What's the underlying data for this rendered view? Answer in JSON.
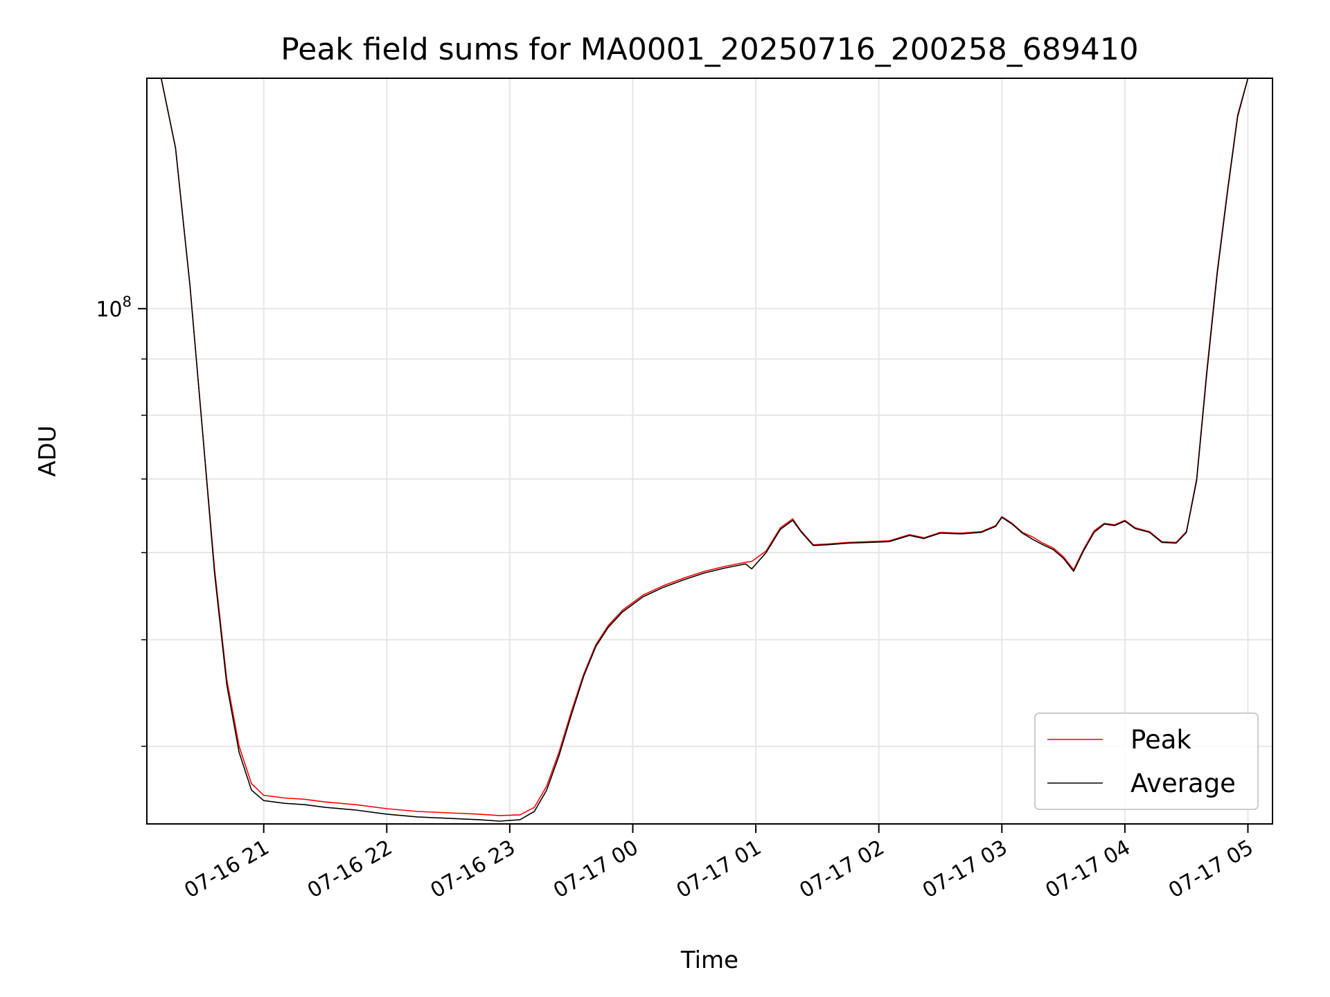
{
  "chart_data": {
    "type": "line",
    "title": "Peak field sums for MA0001_20250716_200258_689410",
    "xlabel": "Time",
    "ylabel": "ADU",
    "yscale": "log",
    "xlim": [
      "2025-07-16 20:03",
      "2025-07-17 05:12"
    ],
    "ylim": [
      34000000,
      162000000
    ],
    "grid": true,
    "legend_position": "lower-right",
    "x_ticks": [
      {
        "time": "2025-07-16 21:00",
        "label": "07-16 21"
      },
      {
        "time": "2025-07-16 22:00",
        "label": "07-16 22"
      },
      {
        "time": "2025-07-16 23:00",
        "label": "07-16 23"
      },
      {
        "time": "2025-07-17 00:00",
        "label": "07-17 00"
      },
      {
        "time": "2025-07-17 01:00",
        "label": "07-17 01"
      },
      {
        "time": "2025-07-17 02:00",
        "label": "07-17 02"
      },
      {
        "time": "2025-07-17 03:00",
        "label": "07-17 03"
      },
      {
        "time": "2025-07-17 04:00",
        "label": "07-17 04"
      },
      {
        "time": "2025-07-17 05:00",
        "label": "07-17 05"
      }
    ],
    "y_major_ticks": [
      {
        "value": 100000000,
        "base": "10",
        "exponent": "8"
      }
    ],
    "y_minor_ticks": [
      40000000,
      50000000,
      60000000,
      70000000,
      80000000,
      90000000,
      200000000,
      300000000
    ],
    "series": [
      {
        "name": "Peak",
        "color": "#ff0000",
        "x": [
          "2025-07-16 20:03",
          "2025-07-16 20:10",
          "2025-07-16 20:17",
          "2025-07-16 20:24",
          "2025-07-16 20:30",
          "2025-07-16 20:36",
          "2025-07-16 20:42",
          "2025-07-16 20:48",
          "2025-07-16 20:54",
          "2025-07-16 21:00",
          "2025-07-16 21:10",
          "2025-07-16 21:20",
          "2025-07-16 21:30",
          "2025-07-16 21:45",
          "2025-07-16 22:00",
          "2025-07-16 22:15",
          "2025-07-16 22:30",
          "2025-07-16 22:45",
          "2025-07-16 22:55",
          "2025-07-16 23:05",
          "2025-07-16 23:12",
          "2025-07-16 23:18",
          "2025-07-16 23:24",
          "2025-07-16 23:30",
          "2025-07-16 23:36",
          "2025-07-16 23:42",
          "2025-07-16 23:48",
          "2025-07-16 23:55",
          "2025-07-17 00:05",
          "2025-07-17 00:15",
          "2025-07-17 00:25",
          "2025-07-17 00:35",
          "2025-07-17 00:45",
          "2025-07-17 00:55",
          "2025-07-17 00:58",
          "2025-07-17 01:05",
          "2025-07-17 01:12",
          "2025-07-17 01:18",
          "2025-07-17 01:22",
          "2025-07-17 01:28",
          "2025-07-17 01:35",
          "2025-07-17 01:45",
          "2025-07-17 01:55",
          "2025-07-17 02:05",
          "2025-07-17 02:15",
          "2025-07-17 02:22",
          "2025-07-17 02:30",
          "2025-07-17 02:40",
          "2025-07-17 02:50",
          "2025-07-17 02:57",
          "2025-07-17 03:00",
          "2025-07-17 03:05",
          "2025-07-17 03:10",
          "2025-07-17 03:15",
          "2025-07-17 03:20",
          "2025-07-17 03:25",
          "2025-07-17 03:30",
          "2025-07-17 03:35",
          "2025-07-17 03:40",
          "2025-07-17 03:45",
          "2025-07-17 03:50",
          "2025-07-17 03:55",
          "2025-07-17 04:00",
          "2025-07-17 04:05",
          "2025-07-17 04:12",
          "2025-07-17 04:18",
          "2025-07-17 04:25",
          "2025-07-17 04:30",
          "2025-07-17 04:35",
          "2025-07-17 04:40",
          "2025-07-17 04:45",
          "2025-07-17 04:50",
          "2025-07-17 04:55",
          "2025-07-17 05:00",
          "2025-07-17 05:12"
        ],
        "y": [
          162000000,
          162000000,
          140000000,
          105000000,
          78000000,
          58000000,
          46000000,
          40000000,
          37000000,
          36100000,
          35900000,
          35800000,
          35600000,
          35400000,
          35100000,
          34900000,
          34800000,
          34700000,
          34600000,
          34650000,
          35200000,
          36800000,
          39500000,
          43000000,
          46500000,
          49500000,
          51500000,
          53200000,
          54900000,
          56000000,
          56900000,
          57700000,
          58300000,
          58800000,
          58900000,
          60200000,
          63200000,
          64400000,
          62800000,
          61000000,
          61100000,
          61300000,
          61400000,
          61500000,
          62300000,
          61900000,
          62600000,
          62500000,
          62700000,
          63500000,
          64700000,
          63800000,
          62600000,
          62000000,
          61200000,
          60600000,
          59500000,
          57900000,
          60500000,
          62800000,
          63800000,
          63600000,
          64200000,
          63200000,
          62700000,
          61400000,
          61300000,
          62700000,
          70000000,
          88000000,
          108000000,
          128000000,
          150000000,
          162000000,
          162000000
        ]
      },
      {
        "name": "Average",
        "color": "#000000",
        "x": [
          "2025-07-16 20:03",
          "2025-07-16 20:10",
          "2025-07-16 20:17",
          "2025-07-16 20:24",
          "2025-07-16 20:30",
          "2025-07-16 20:36",
          "2025-07-16 20:42",
          "2025-07-16 20:48",
          "2025-07-16 20:54",
          "2025-07-16 21:00",
          "2025-07-16 21:10",
          "2025-07-16 21:20",
          "2025-07-16 21:30",
          "2025-07-16 21:45",
          "2025-07-16 22:00",
          "2025-07-16 22:15",
          "2025-07-16 22:30",
          "2025-07-16 22:45",
          "2025-07-16 22:55",
          "2025-07-16 23:05",
          "2025-07-16 23:12",
          "2025-07-16 23:18",
          "2025-07-16 23:24",
          "2025-07-16 23:30",
          "2025-07-16 23:36",
          "2025-07-16 23:42",
          "2025-07-16 23:48",
          "2025-07-16 23:55",
          "2025-07-17 00:05",
          "2025-07-17 00:15",
          "2025-07-17 00:25",
          "2025-07-17 00:35",
          "2025-07-17 00:45",
          "2025-07-17 00:55",
          "2025-07-17 00:58",
          "2025-07-17 01:05",
          "2025-07-17 01:12",
          "2025-07-17 01:18",
          "2025-07-17 01:22",
          "2025-07-17 01:28",
          "2025-07-17 01:35",
          "2025-07-17 01:45",
          "2025-07-17 01:55",
          "2025-07-17 02:05",
          "2025-07-17 02:15",
          "2025-07-17 02:22",
          "2025-07-17 02:30",
          "2025-07-17 02:40",
          "2025-07-17 02:50",
          "2025-07-17 02:57",
          "2025-07-17 03:00",
          "2025-07-17 03:05",
          "2025-07-17 03:10",
          "2025-07-17 03:15",
          "2025-07-17 03:20",
          "2025-07-17 03:25",
          "2025-07-17 03:30",
          "2025-07-17 03:35",
          "2025-07-17 03:40",
          "2025-07-17 03:45",
          "2025-07-17 03:50",
          "2025-07-17 03:55",
          "2025-07-17 04:00",
          "2025-07-17 04:05",
          "2025-07-17 04:12",
          "2025-07-17 04:18",
          "2025-07-17 04:25",
          "2025-07-17 04:30",
          "2025-07-17 04:35",
          "2025-07-17 04:40",
          "2025-07-17 04:45",
          "2025-07-17 04:50",
          "2025-07-17 04:55",
          "2025-07-17 05:00",
          "2025-07-17 05:12"
        ],
        "y": [
          162000000,
          162000000,
          140000000,
          105000000,
          78000000,
          57500000,
          45500000,
          39500000,
          36500000,
          35700000,
          35500000,
          35400000,
          35200000,
          35000000,
          34700000,
          34500000,
          34400000,
          34300000,
          34200000,
          34300000,
          34900000,
          36500000,
          39200000,
          42700000,
          46300000,
          49300000,
          51300000,
          53000000,
          54700000,
          55800000,
          56700000,
          57500000,
          58100000,
          58600000,
          58000000,
          60000000,
          63000000,
          64200000,
          62700000,
          60900000,
          61000000,
          61200000,
          61300000,
          61400000,
          62200000,
          61800000,
          62500000,
          62400000,
          62600000,
          63400000,
          64600000,
          63700000,
          62500000,
          61700000,
          61000000,
          60400000,
          59300000,
          57700000,
          60300000,
          62600000,
          63700000,
          63500000,
          64100000,
          63100000,
          62600000,
          61300000,
          61200000,
          62600000,
          69800000,
          87500000,
          107500000,
          127500000,
          149500000,
          162000000,
          162000000
        ]
      }
    ]
  }
}
